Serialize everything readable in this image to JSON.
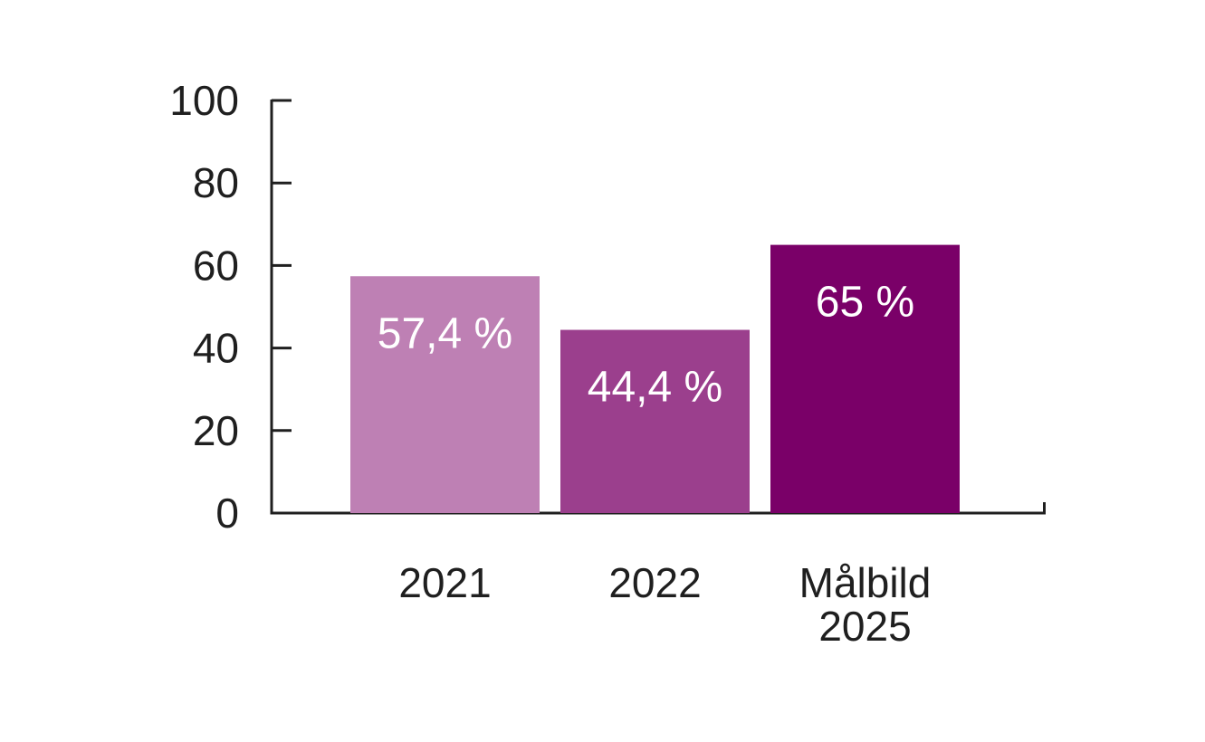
{
  "chart_data": {
    "type": "bar",
    "categories": [
      [
        "2021"
      ],
      [
        "2022"
      ],
      [
        "Målbild",
        "2025"
      ]
    ],
    "values": [
      57.4,
      44.4,
      65
    ],
    "data_labels": [
      "57,4 %",
      "44,4 %",
      "65 %"
    ],
    "bar_colors": [
      "#be80b4",
      "#9b3f8d",
      "#7a0068"
    ],
    "ylim": [
      0,
      100
    ],
    "yticks": [
      0,
      20,
      40,
      60,
      80,
      100
    ],
    "ytick_labels": [
      "0",
      "20",
      "40",
      "60",
      "80",
      "100"
    ],
    "grid": false,
    "axis_color": "#1f1f1f",
    "label_color": "#ffffff"
  }
}
